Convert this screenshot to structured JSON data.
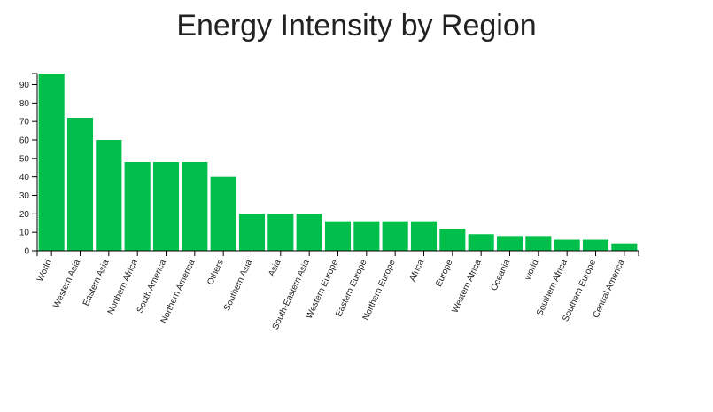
{
  "chart_data": {
    "type": "bar",
    "title": "Energy Intensity by Region",
    "xlabel": "",
    "ylabel": "",
    "ylim": [
      0,
      96
    ],
    "yticks": [
      0,
      10,
      20,
      30,
      40,
      50,
      60,
      70,
      80,
      90
    ],
    "bar_color": "#00c04b",
    "categories": [
      "World",
      "Western Asia",
      "Eastern Asia",
      "Northern Africa",
      "South America",
      "Northern America",
      "Others",
      "Southern Asia",
      "Asia",
      "South-Eastern Asia",
      "Western Europe",
      "Eastern Europe",
      "Northern Europe",
      "Africa",
      "Europe",
      "Western Africa",
      "Oceania",
      "world",
      "Southern Africa",
      "Southern Europe",
      "Central America"
    ],
    "values": [
      96,
      72,
      60,
      48,
      48,
      48,
      40,
      20,
      20,
      20,
      16,
      16,
      16,
      16,
      12,
      9,
      8,
      8,
      6,
      6,
      4
    ]
  }
}
